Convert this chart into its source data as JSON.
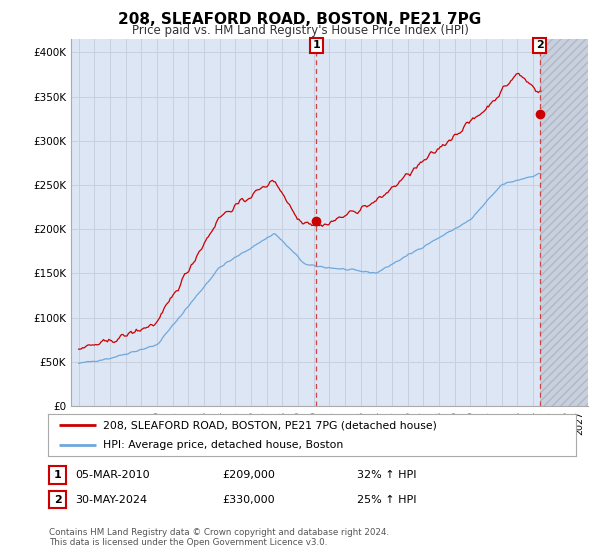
{
  "title": "208, SLEAFORD ROAD, BOSTON, PE21 7PG",
  "subtitle": "Price paid vs. HM Land Registry's House Price Index (HPI)",
  "yticks": [
    0,
    50000,
    100000,
    150000,
    200000,
    250000,
    300000,
    350000,
    400000
  ],
  "ytick_labels": [
    "£0",
    "£50K",
    "£100K",
    "£150K",
    "£200K",
    "£250K",
    "£300K",
    "£350K",
    "£400K"
  ],
  "xlim_start": 1994.5,
  "xlim_end": 2027.5,
  "ylim_min": 0,
  "ylim_max": 415000,
  "sale1_date_num": 2010.17,
  "sale1_price": 209000,
  "sale2_date_num": 2024.41,
  "sale2_price": 330000,
  "legend_line1": "208, SLEAFORD ROAD, BOSTON, PE21 7PG (detached house)",
  "legend_line2": "HPI: Average price, detached house, Boston",
  "hpi_color": "#6fa8dc",
  "price_color": "#cc0000",
  "grid_color": "#c8d0e0",
  "bg_color": "#ffffff",
  "plot_bg_color": "#dce6f5",
  "hatch_color": "#b0b8c8",
  "footnote": "Contains HM Land Registry data © Crown copyright and database right 2024.\nThis data is licensed under the Open Government Licence v3.0."
}
